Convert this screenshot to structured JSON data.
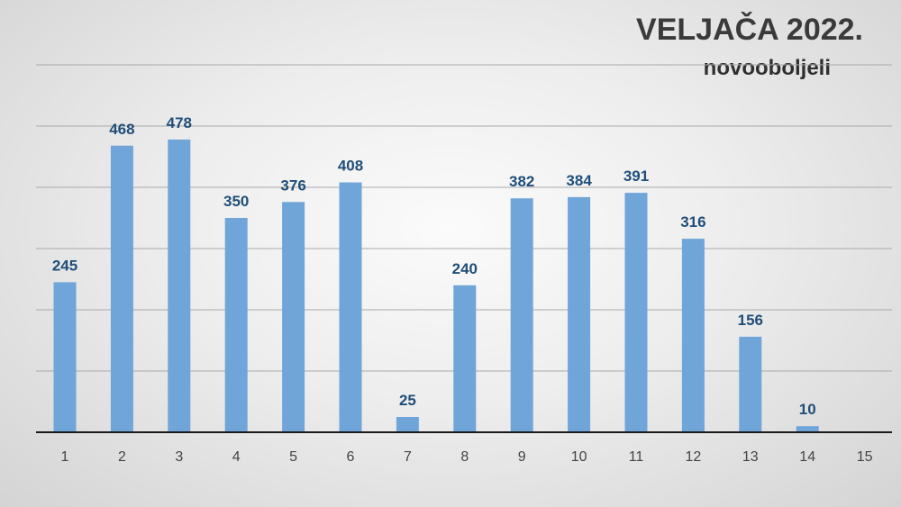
{
  "chart_data": {
    "type": "bar",
    "title": "VELJAČA 2022.",
    "subtitle": "novooboljeli",
    "categories": [
      "1",
      "2",
      "3",
      "4",
      "5",
      "6",
      "7",
      "8",
      "9",
      "10",
      "11",
      "12",
      "13",
      "14",
      "15"
    ],
    "values": [
      245,
      468,
      478,
      350,
      376,
      408,
      25,
      240,
      382,
      384,
      391,
      316,
      156,
      10,
      null
    ],
    "ylim": [
      0,
      600
    ],
    "grid": true,
    "bar_color": "#6fa5d8",
    "label_color": "#1f4e79"
  }
}
